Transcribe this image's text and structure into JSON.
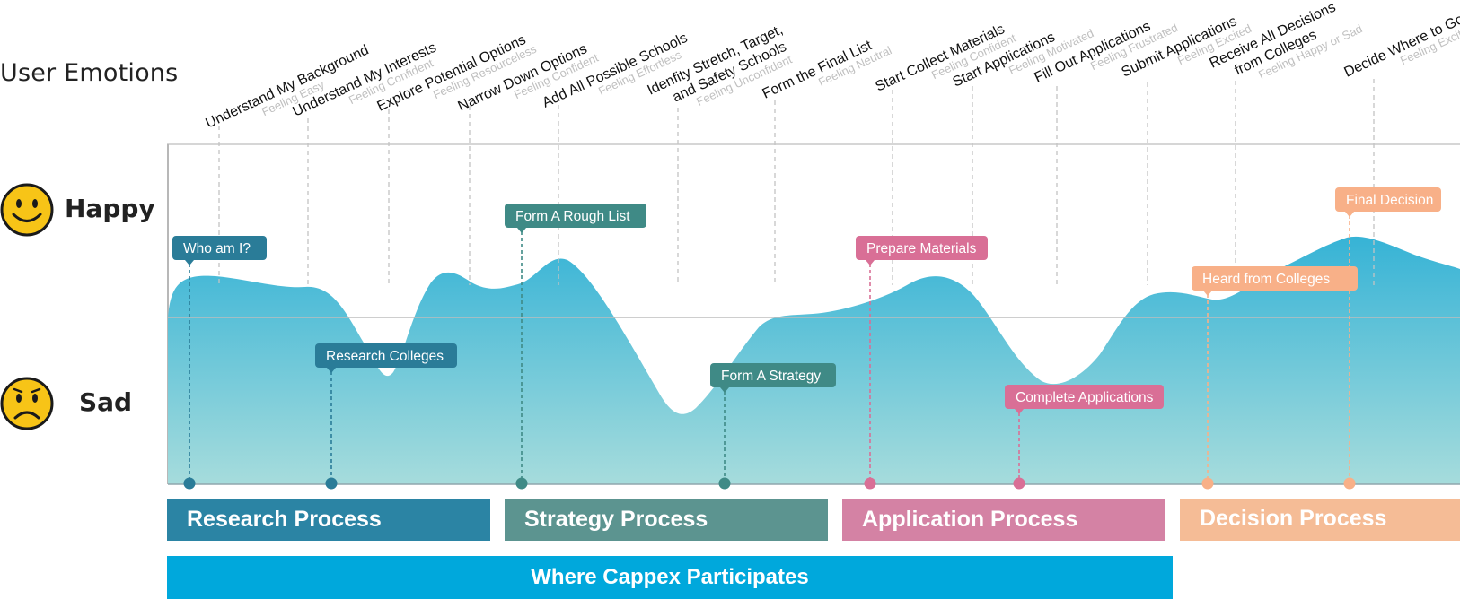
{
  "title": "User Emotions",
  "emotions": {
    "happy": "Happy",
    "sad": "Sad"
  },
  "colors": {
    "wave_top": "#36b3d6",
    "wave_bottom": "#a6dcdc",
    "research": "#2b84a4",
    "strategy": "#5c9490",
    "application": "#d482a4",
    "decision": "#f5bc96",
    "cappex": "#00a8dc",
    "tag_research": "#2a7c98",
    "tag_strategy": "#3f8a86",
    "tag_application": "#d96f96",
    "tag_decision": "#f8b088"
  },
  "steps": [
    {
      "name": "Understand My Background",
      "feeling": "Feeling Easy"
    },
    {
      "name": "Understand My Interests",
      "feeling": "Feeling Confident"
    },
    {
      "name": "Explore Potential Options",
      "feeling": "Feeling Resourceless"
    },
    {
      "name": "Narrow Down Options",
      "feeling": "Feeling Confident"
    },
    {
      "name": "Add All Possible Schools",
      "feeling": "Feeling Effortless"
    },
    {
      "name": "Idenfity Stretch, Target,",
      "name2": "and Safety Schools",
      "feeling": "Feeling Unconfident"
    },
    {
      "name": "Form the Final List",
      "feeling": "Feeling Neutral"
    },
    {
      "name": "Start Collect Materials",
      "feeling": "Feeling Confident"
    },
    {
      "name": "Start Applications",
      "feeling": "Feeling Motivated"
    },
    {
      "name": "Fill Out Applications",
      "feeling": "Feeling Frustrated"
    },
    {
      "name": "Submit Applications",
      "feeling": "Feeling Excited"
    },
    {
      "name": "Receive All Decisions",
      "name2": "from Colleges",
      "feeling": "Feeling Happy or Sad"
    },
    {
      "name": "Decide Where to Go",
      "feeling": "Feeling Excited"
    }
  ],
  "milestones": [
    {
      "label": "Who am I?",
      "phase": "research"
    },
    {
      "label": "Research Colleges",
      "phase": "research"
    },
    {
      "label": "Form A Rough List",
      "phase": "strategy"
    },
    {
      "label": "Form A Strategy",
      "phase": "strategy"
    },
    {
      "label": "Prepare Materials",
      "phase": "application"
    },
    {
      "label": "Complete Applications",
      "phase": "application"
    },
    {
      "label": "Heard from Colleges",
      "phase": "decision"
    },
    {
      "label": "Final Decision",
      "phase": "decision"
    }
  ],
  "phases": {
    "research": "Research Process",
    "strategy": "Strategy Process",
    "application": "Application Process",
    "decision": "Decision Process"
  },
  "cappex": "Where Cappex Participates"
}
